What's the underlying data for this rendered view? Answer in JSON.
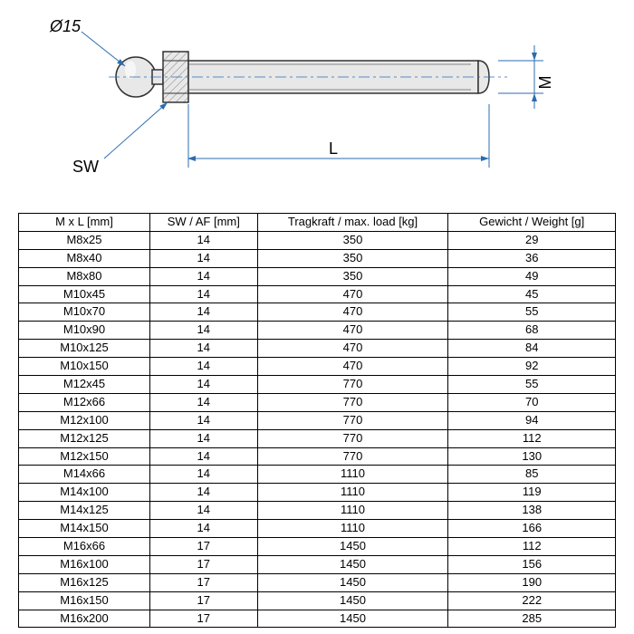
{
  "diagram": {
    "diameter_label": "Ø15",
    "sw_label": "SW",
    "l_label": "L",
    "m_label": "M",
    "line_color": "#2a6cb0",
    "part_stroke": "#333333",
    "part_fill": "#e8e8e8",
    "hatch_fill": "#c8c8c8"
  },
  "table": {
    "headers": {
      "mxl": "M x L [mm]",
      "swaf": "SW / AF [mm]",
      "load": "Tragkraft / max. load [kg]",
      "weight": "Gewicht / Weight [g]"
    },
    "rows": [
      {
        "mxl": "M8x25",
        "sw": "14",
        "load": "350",
        "weight": "29"
      },
      {
        "mxl": "M8x40",
        "sw": "14",
        "load": "350",
        "weight": "36"
      },
      {
        "mxl": "M8x80",
        "sw": "14",
        "load": "350",
        "weight": "49"
      },
      {
        "mxl": "M10x45",
        "sw": "14",
        "load": "470",
        "weight": "45"
      },
      {
        "mxl": "M10x70",
        "sw": "14",
        "load": "470",
        "weight": "55"
      },
      {
        "mxl": "M10x90",
        "sw": "14",
        "load": "470",
        "weight": "68"
      },
      {
        "mxl": "M10x125",
        "sw": "14",
        "load": "470",
        "weight": "84"
      },
      {
        "mxl": "M10x150",
        "sw": "14",
        "load": "470",
        "weight": "92"
      },
      {
        "mxl": "M12x45",
        "sw": "14",
        "load": "770",
        "weight": "55"
      },
      {
        "mxl": "M12x66",
        "sw": "14",
        "load": "770",
        "weight": "70"
      },
      {
        "mxl": "M12x100",
        "sw": "14",
        "load": "770",
        "weight": "94"
      },
      {
        "mxl": "M12x125",
        "sw": "14",
        "load": "770",
        "weight": "112"
      },
      {
        "mxl": "M12x150",
        "sw": "14",
        "load": "770",
        "weight": "130"
      },
      {
        "mxl": "M14x66",
        "sw": "14",
        "load": "1110",
        "weight": "85"
      },
      {
        "mxl": "M14x100",
        "sw": "14",
        "load": "1110",
        "weight": "119"
      },
      {
        "mxl": "M14x125",
        "sw": "14",
        "load": "1110",
        "weight": "138"
      },
      {
        "mxl": "M14x150",
        "sw": "14",
        "load": "1110",
        "weight": "166"
      },
      {
        "mxl": "M16x66",
        "sw": "17",
        "load": "1450",
        "weight": "112"
      },
      {
        "mxl": "M16x100",
        "sw": "17",
        "load": "1450",
        "weight": "156"
      },
      {
        "mxl": "M16x125",
        "sw": "17",
        "load": "1450",
        "weight": "190"
      },
      {
        "mxl": "M16x150",
        "sw": "17",
        "load": "1450",
        "weight": "222"
      },
      {
        "mxl": "M16x200",
        "sw": "17",
        "load": "1450",
        "weight": "285"
      }
    ]
  }
}
